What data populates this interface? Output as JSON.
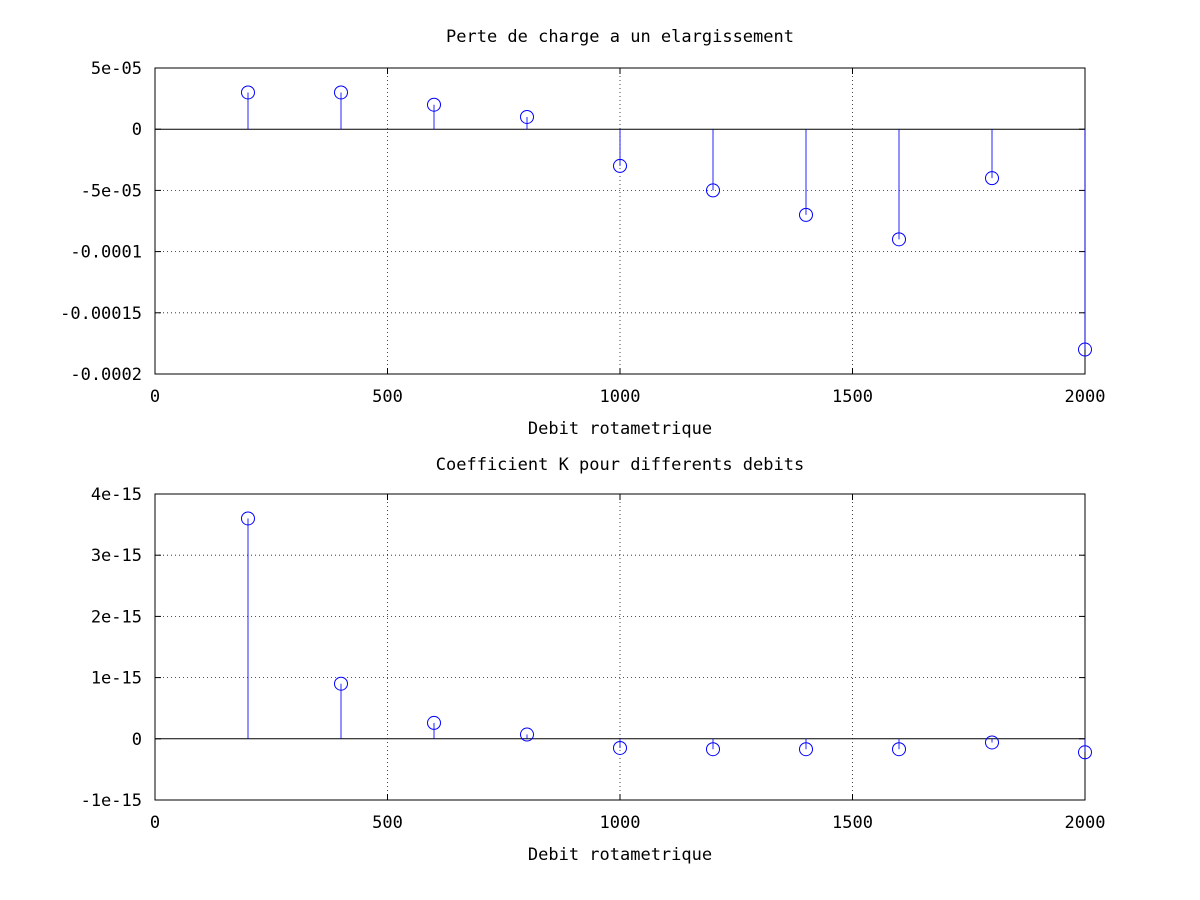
{
  "chart_data": [
    {
      "type": "stem",
      "title": "Perte de charge a un elargissement",
      "xlabel": "Debit rotametrique",
      "ylabel": "",
      "xlim": [
        0,
        2000
      ],
      "ylim": [
        -0.0002,
        5e-05
      ],
      "xticks": [
        0,
        500,
        1000,
        1500,
        2000
      ],
      "xtick_labels": [
        "0",
        "500",
        "1000",
        "1500",
        "2000"
      ],
      "yticks": [
        5e-05,
        0,
        -5e-05,
        -0.0001,
        -0.00015,
        -0.0002
      ],
      "ytick_labels": [
        "5e-05",
        "0",
        "-5e-05",
        "-0.0001",
        "-0.00015",
        "-0.0002"
      ],
      "grid": true,
      "x": [
        200,
        400,
        600,
        800,
        1000,
        1200,
        1400,
        1600,
        1800,
        2000
      ],
      "series": [
        {
          "values": [
            3e-05,
            3e-05,
            2e-05,
            1e-05,
            -3e-05,
            -5e-05,
            -7e-05,
            -9e-05,
            -4e-05,
            -0.00018
          ],
          "color": "#0000ff"
        }
      ]
    },
    {
      "type": "stem",
      "title": "Coefficient K pour differents debits",
      "xlabel": "Debit rotametrique",
      "ylabel": "",
      "xlim": [
        0,
        2000
      ],
      "ylim": [
        -1e-15,
        4e-15
      ],
      "xticks": [
        0,
        500,
        1000,
        1500,
        2000
      ],
      "xtick_labels": [
        "0",
        "500",
        "1000",
        "1500",
        "2000"
      ],
      "yticks": [
        4e-15,
        3e-15,
        2e-15,
        1e-15,
        0,
        -1e-15
      ],
      "ytick_labels": [
        "4e-15",
        "3e-15",
        "2e-15",
        "1e-15",
        "0",
        "-1e-15"
      ],
      "grid": true,
      "x": [
        200,
        400,
        600,
        800,
        1000,
        1200,
        1400,
        1600,
        1800,
        2000
      ],
      "series": [
        {
          "values": [
            3.6e-15,
            9e-16,
            2.6e-16,
            7e-17,
            -1.5e-16,
            -1.7e-16,
            -1.7e-16,
            -1.7e-16,
            -6e-17,
            -2.2e-16
          ],
          "color": "#0000ff"
        }
      ]
    }
  ]
}
